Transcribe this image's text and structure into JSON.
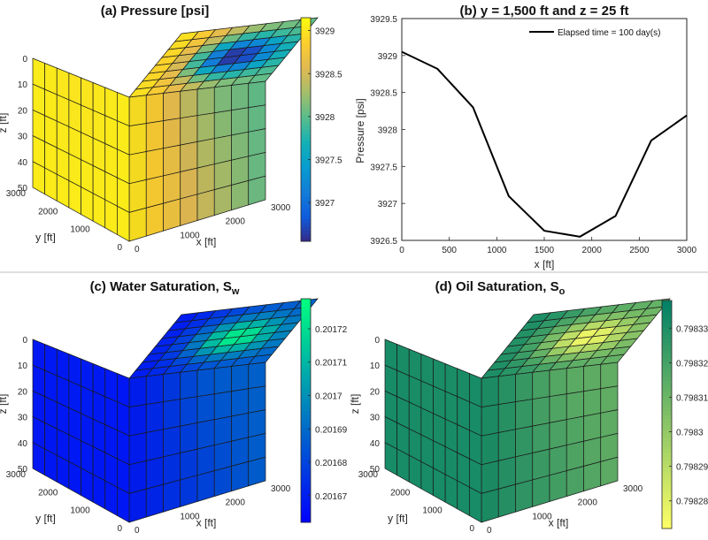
{
  "chart_data": [
    {
      "id": "a",
      "type": "heatmap",
      "title": "(a) Pressure [psi]",
      "xlabel": "x [ft]",
      "ylabel": "y [ft]",
      "zlabel": "z [ft]",
      "x_ticks": [
        "0",
        "1000",
        "2000",
        "3000"
      ],
      "y_ticks": [
        "0",
        "1000",
        "2000",
        "3000"
      ],
      "z_ticks": [
        "0",
        "10",
        "20",
        "30",
        "40",
        "50"
      ],
      "colormap": "parula",
      "clim": [
        3926.55,
        3929.15
      ],
      "colorbar_ticks": [
        {
          "value": 3929,
          "label": "3929"
        },
        {
          "value": 3928.5,
          "label": "3928.5"
        },
        {
          "value": 3928,
          "label": "3928"
        },
        {
          "value": 3927.5,
          "label": "3927.5"
        },
        {
          "value": 3927,
          "label": "3927"
        }
      ],
      "field": {
        "min": 3926.55,
        "max": 3929.05,
        "center_x": 1800,
        "center_y": 1500,
        "top_depth": 0,
        "radius": 900,
        "edge": 3927.9,
        "invert": false
      }
    },
    {
      "id": "b",
      "type": "line",
      "title": "(b) y = 1,500 ft and z = 25 ft",
      "xlabel": "x [ft]",
      "ylabel": "Pressure [psi]",
      "xlim": [
        0,
        3000
      ],
      "ylim": [
        3926.5,
        3929.5
      ],
      "x_ticks": [
        "0",
        "500",
        "1000",
        "1500",
        "2000",
        "2500",
        "3000"
      ],
      "y_ticks": [
        "3926.5",
        "3927",
        "3927.5",
        "3928",
        "3928.5",
        "3929",
        "3929.5"
      ],
      "legend_position": "top-right",
      "series": [
        {
          "name": "Elapsed time = 100 day(s)",
          "color": "#000000",
          "x": [
            0,
            375,
            750,
            1125,
            1500,
            1875,
            2250,
            2625,
            3000
          ],
          "y": [
            3929.05,
            3928.82,
            3928.3,
            3927.1,
            3926.63,
            3926.55,
            3926.83,
            3927.85,
            3928.19
          ]
        }
      ]
    },
    {
      "id": "c",
      "type": "heatmap",
      "title": "(c) Water Saturation, S",
      "title_subscript": "w",
      "xlabel": "x [ft]",
      "ylabel": "y [ft]",
      "zlabel": "z [ft]",
      "x_ticks": [
        "0",
        "1000",
        "2000",
        "3000"
      ],
      "y_ticks": [
        "0",
        "1000",
        "2000",
        "3000"
      ],
      "z_ticks": [
        "0",
        "10",
        "20",
        "30",
        "40",
        "50"
      ],
      "colormap": "winter",
      "clim": [
        0.201662,
        0.201729
      ],
      "colorbar_ticks": [
        {
          "value": 0.20172,
          "label": "0.20172"
        },
        {
          "value": 0.20171,
          "label": "0.20171"
        },
        {
          "value": 0.2017,
          "label": "0.2017"
        },
        {
          "value": 0.20169,
          "label": "0.20169"
        },
        {
          "value": 0.20168,
          "label": "0.20168"
        },
        {
          "value": 0.20167,
          "label": "0.20167"
        }
      ],
      "field": {
        "min": 0.201668,
        "max": 0.201725,
        "center_x": 1800,
        "center_y": 1500,
        "top_depth": 0,
        "radius": 900,
        "edge": 0.20169,
        "invert": true
      }
    },
    {
      "id": "d",
      "type": "heatmap",
      "title": "(d) Oil Saturation, S",
      "title_subscript": "o",
      "xlabel": "x [ft]",
      "ylabel": "y [ft]",
      "zlabel": "z [ft]",
      "x_ticks": [
        "0",
        "1000",
        "2000",
        "3000"
      ],
      "y_ticks": [
        "0",
        "1000",
        "2000",
        "3000"
      ],
      "z_ticks": [
        "0",
        "10",
        "20",
        "30",
        "40",
        "50"
      ],
      "colormap": "summer_reversed",
      "clim": [
        0.798272,
        0.798338
      ],
      "colorbar_ticks": [
        {
          "value": 0.79833,
          "label": "0.79833"
        },
        {
          "value": 0.79832,
          "label": "0.79832"
        },
        {
          "value": 0.79831,
          "label": "0.79831"
        },
        {
          "value": 0.7983,
          "label": "0.7983"
        },
        {
          "value": 0.79829,
          "label": "0.79829"
        },
        {
          "value": 0.79828,
          "label": "0.79828"
        }
      ],
      "field": {
        "min": 0.798275,
        "max": 0.798332,
        "center_x": 1800,
        "center_y": 1500,
        "top_depth": 0,
        "radius": 900,
        "edge": 0.79831,
        "invert": false
      }
    }
  ]
}
